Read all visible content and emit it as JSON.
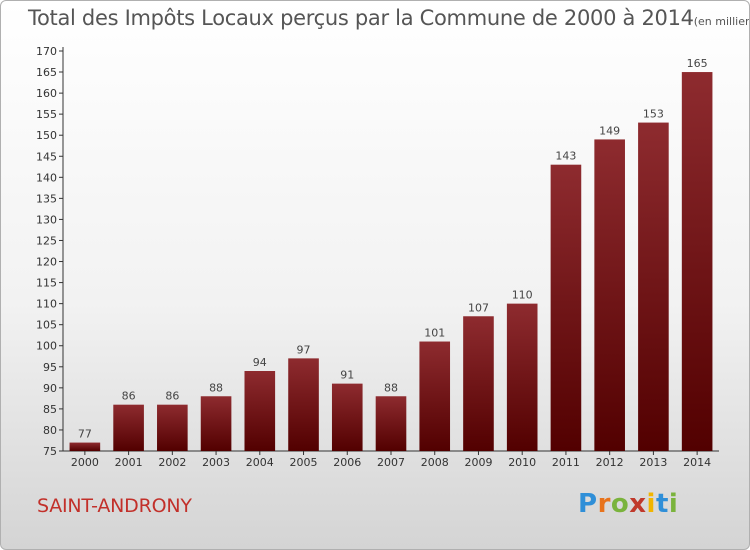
{
  "header": {
    "title": "Total des Impôts Locaux perçus par la Commune de 2000 à 2014",
    "unit": "(en milliers d'€)"
  },
  "footer": {
    "commune": "SAINT-ANDRONY",
    "logo_letters": [
      "P",
      "r",
      "o",
      "x",
      "i",
      "t",
      "i"
    ],
    "logo_colors": [
      "#2f8fd8",
      "#e8731c",
      "#7ab33c",
      "#c0392b",
      "#f1b500",
      "#2f8fd8",
      "#7ab33c"
    ]
  },
  "chart_data": {
    "type": "bar",
    "title": "Total des Impôts Locaux perçus par la Commune de 2000 à 2014",
    "xlabel": "",
    "ylabel": "",
    "categories": [
      "2000",
      "2001",
      "2002",
      "2003",
      "2004",
      "2005",
      "2006",
      "2007",
      "2008",
      "2009",
      "2010",
      "2011",
      "2012",
      "2013",
      "2014"
    ],
    "values": [
      77,
      86,
      86,
      88,
      94,
      97,
      91,
      88,
      101,
      107,
      110,
      143,
      149,
      153,
      165
    ],
    "data_labels": [
      "77",
      "86",
      "86",
      "88",
      "94",
      "97",
      "91",
      "88",
      "101",
      "107",
      "110",
      "143",
      "149",
      "153",
      "165"
    ],
    "ylim": [
      75,
      170
    ],
    "yticks": [
      75,
      80,
      85,
      90,
      95,
      100,
      105,
      110,
      115,
      120,
      125,
      130,
      135,
      140,
      145,
      150,
      155,
      160,
      165,
      170
    ],
    "grid": false,
    "bar_color": "#7a1418"
  }
}
